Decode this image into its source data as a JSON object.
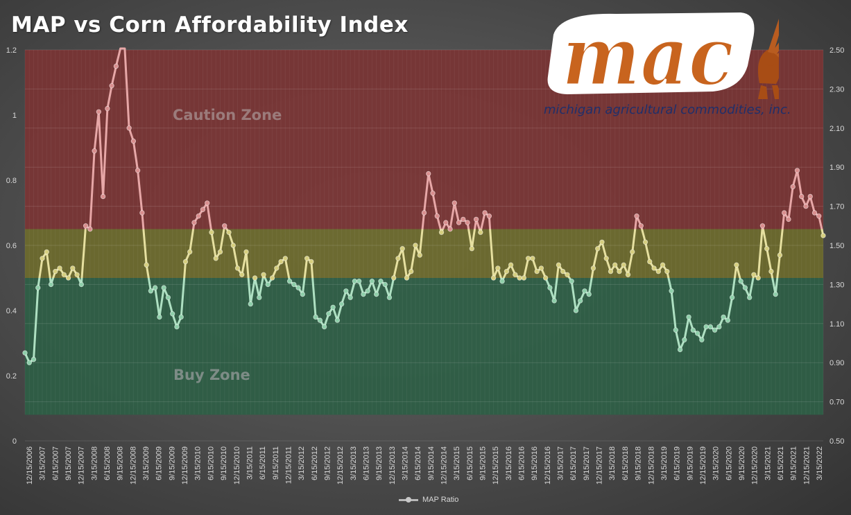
{
  "chart_data": {
    "type": "line",
    "title": "MAP vs Corn Affordability Index",
    "y_left": {
      "min": 0,
      "max": 1.2,
      "ticks": [
        "0",
        "0.2",
        "0.4",
        "0.6",
        "0.8",
        "1",
        "1.2"
      ]
    },
    "y_right": {
      "min": 0.5,
      "max": 2.5,
      "ticks": [
        "0.50",
        "0.70",
        "0.90",
        "1.10",
        "1.30",
        "1.50",
        "1.70",
        "1.90",
        "2.10",
        "2.30",
        "2.50"
      ]
    },
    "zones": [
      {
        "label": "Caution Zone",
        "from": 0.65,
        "to": 1.2,
        "color": "#7a3434"
      },
      {
        "label": "",
        "from": 0.5,
        "to": 0.65,
        "color": "#6d6a2c"
      },
      {
        "label": "Buy Zone",
        "from": 0.08,
        "to": 0.5,
        "color": "#2e5e45"
      }
    ],
    "x_tick_labels": [
      "12/15/2006",
      "3/15/2007",
      "6/15/2007",
      "9/15/2007",
      "12/15/2007",
      "3/15/2008",
      "6/15/2008",
      "9/15/2008",
      "12/15/2008",
      "3/15/2009",
      "6/15/2009",
      "9/15/2009",
      "12/15/2009",
      "3/15/2010",
      "6/15/2010",
      "9/15/2010",
      "12/15/2010",
      "3/15/2011",
      "6/15/2011",
      "9/15/2011",
      "12/15/2011",
      "3/15/2012",
      "6/15/2012",
      "9/15/2012",
      "12/15/2012",
      "3/15/2013",
      "6/15/2013",
      "9/15/2013",
      "12/15/2013",
      "3/15/2014",
      "6/15/2014",
      "9/15/2014",
      "12/15/2014",
      "3/15/2015",
      "6/15/2015",
      "9/15/2015",
      "12/15/2015",
      "3/15/2016",
      "6/15/2016",
      "9/15/2016",
      "12/15/2016",
      "3/15/2017",
      "6/15/2017",
      "9/15/2017",
      "12/15/2017",
      "3/15/2018",
      "6/15/2018",
      "9/15/2018",
      "12/15/2018",
      "3/15/2019",
      "6/15/2019",
      "9/15/2019",
      "12/15/2019",
      "3/15/2020",
      "6/15/2020",
      "9/15/2020",
      "12/15/2020",
      "3/15/2021",
      "6/15/2021",
      "9/15/2021",
      "12/15/2021",
      "3/15/2022"
    ],
    "series": [
      {
        "name": "MAP Ratio",
        "values": [
          0.27,
          0.24,
          0.25,
          0.47,
          0.56,
          0.58,
          0.48,
          0.52,
          0.53,
          0.51,
          0.5,
          0.53,
          0.51,
          0.48,
          0.66,
          0.65,
          0.89,
          1.01,
          0.75,
          1.02,
          1.09,
          1.15,
          1.3,
          1.28,
          0.96,
          0.92,
          0.83,
          0.7,
          0.54,
          0.46,
          0.47,
          0.38,
          0.47,
          0.44,
          0.39,
          0.35,
          0.38,
          0.55,
          0.58,
          0.67,
          0.69,
          0.71,
          0.73,
          0.64,
          0.56,
          0.58,
          0.66,
          0.64,
          0.6,
          0.53,
          0.51,
          0.58,
          0.42,
          0.5,
          0.44,
          0.51,
          0.48,
          0.5,
          0.53,
          0.55,
          0.56,
          0.49,
          0.48,
          0.47,
          0.45,
          0.56,
          0.55,
          0.38,
          0.37,
          0.35,
          0.39,
          0.41,
          0.37,
          0.42,
          0.46,
          0.44,
          0.49,
          0.49,
          0.45,
          0.46,
          0.49,
          0.45,
          0.49,
          0.48,
          0.44,
          0.5,
          0.56,
          0.59,
          0.5,
          0.52,
          0.6,
          0.57,
          0.7,
          0.82,
          0.76,
          0.69,
          0.64,
          0.67,
          0.65,
          0.73,
          0.67,
          0.68,
          0.67,
          0.59,
          0.68,
          0.64,
          0.7,
          0.69,
          0.5,
          0.53,
          0.49,
          0.52,
          0.54,
          0.51,
          0.5,
          0.5,
          0.56,
          0.56,
          0.52,
          0.53,
          0.5,
          0.47,
          0.43,
          0.54,
          0.52,
          0.51,
          0.49,
          0.4,
          0.43,
          0.46,
          0.45,
          0.53,
          0.59,
          0.61,
          0.56,
          0.52,
          0.54,
          0.52,
          0.54,
          0.51,
          0.58,
          0.69,
          0.66,
          0.61,
          0.55,
          0.53,
          0.52,
          0.54,
          0.52,
          0.46,
          0.34,
          0.28,
          0.31,
          0.38,
          0.34,
          0.33,
          0.31,
          0.35,
          0.35,
          0.34,
          0.35,
          0.38,
          0.37,
          0.44,
          0.54,
          0.49,
          0.47,
          0.44,
          0.51,
          0.5,
          0.66,
          0.59,
          0.52,
          0.45,
          0.57,
          0.7,
          0.68,
          0.78,
          0.83,
          0.75,
          0.72,
          0.75,
          0.7,
          0.69,
          0.63
        ]
      }
    ],
    "legend": "bottom-center",
    "grid": true
  },
  "logo": {
    "wordmark": "mac",
    "subtitle": "michigan agricultural commodities, inc."
  }
}
